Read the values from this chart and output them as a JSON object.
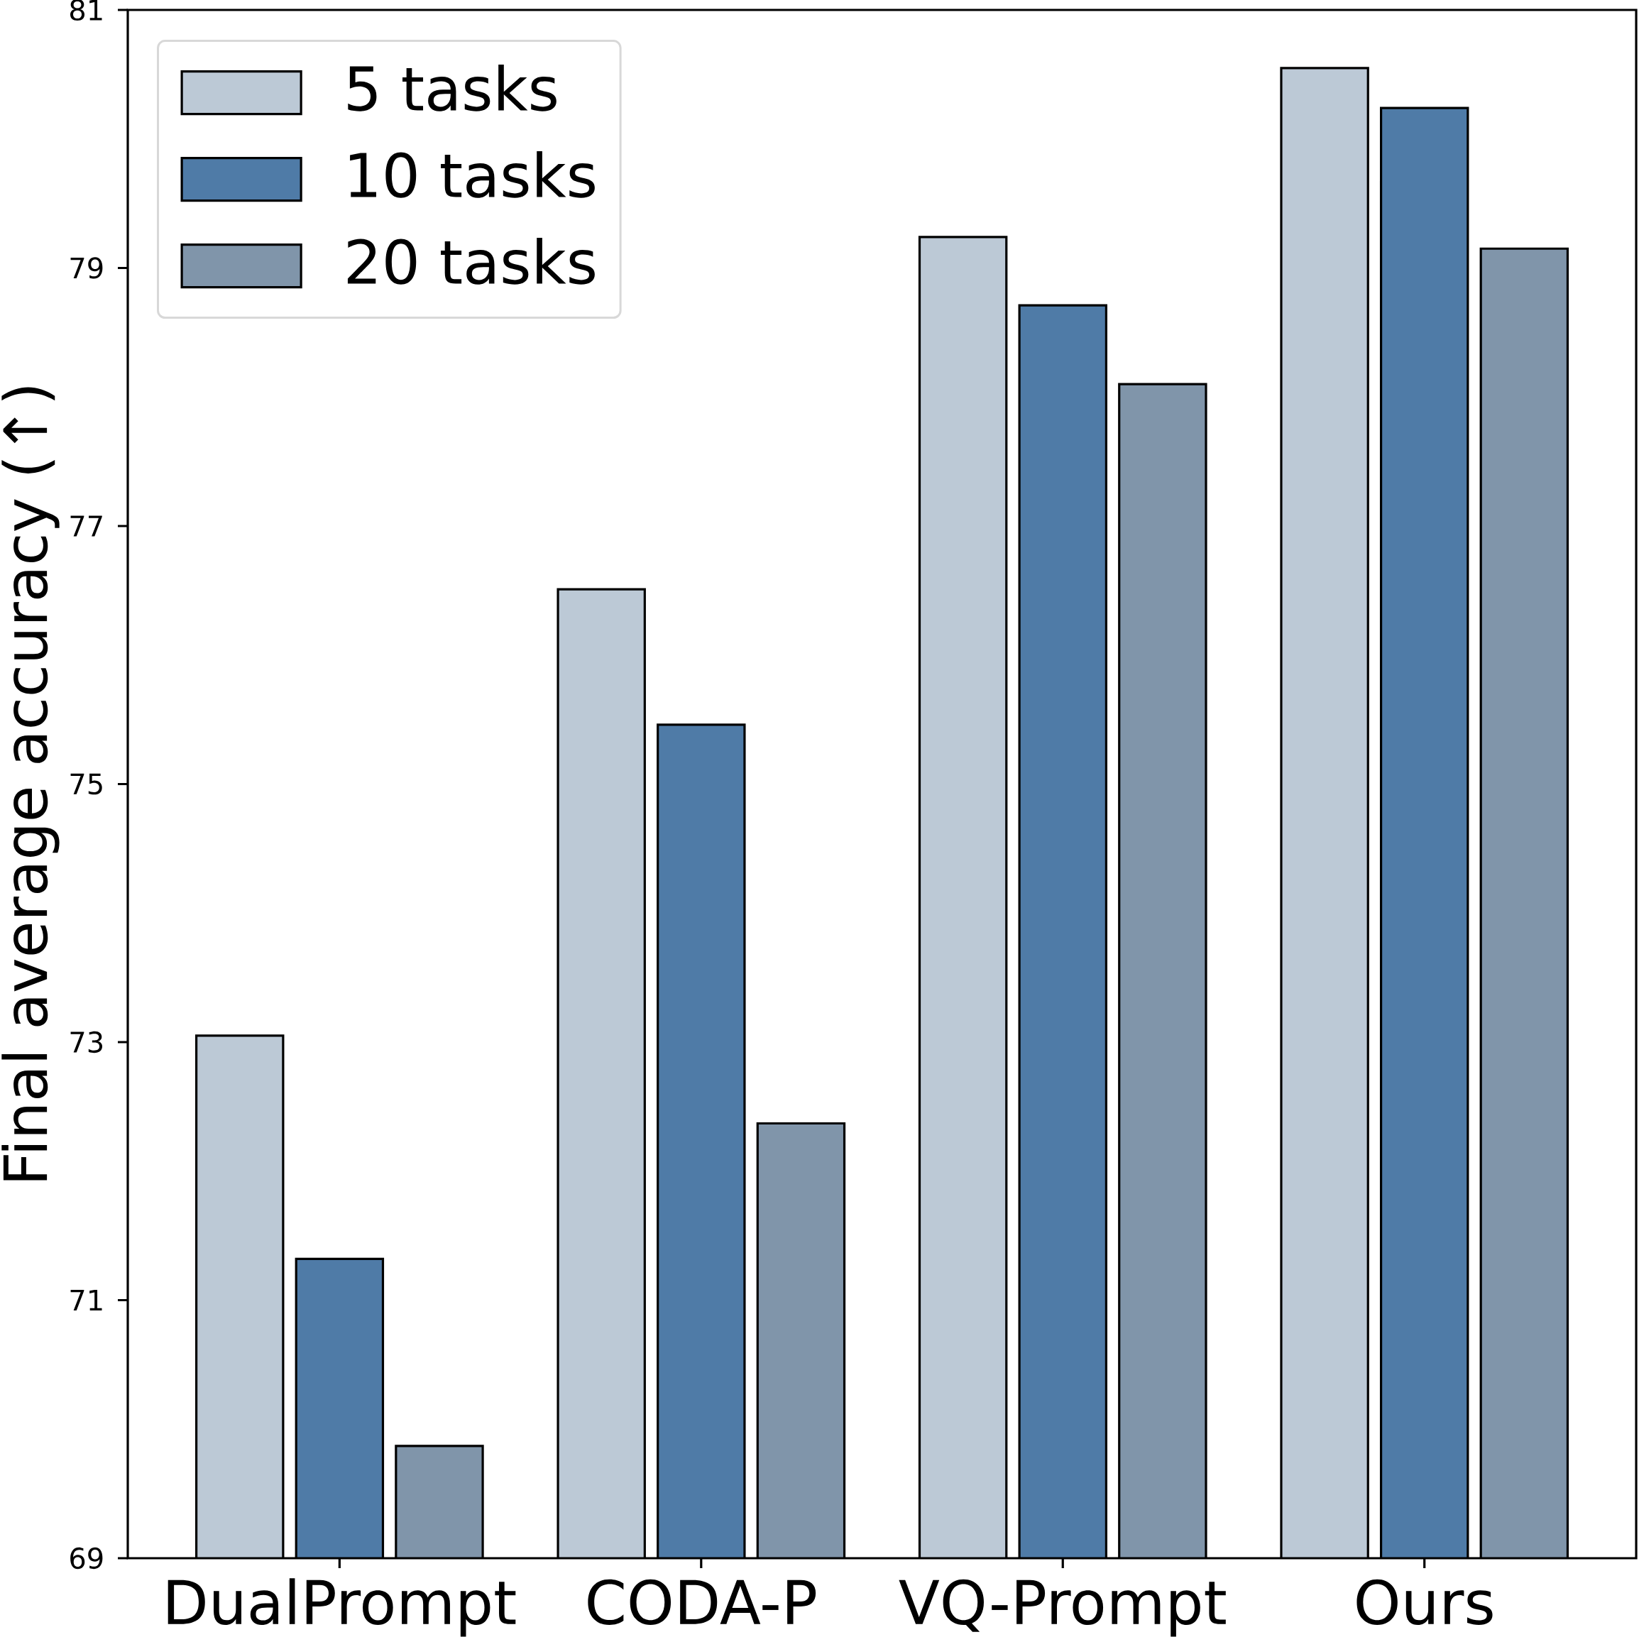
{
  "chart_data": {
    "type": "bar",
    "ylabel": "Final average accuracy (↑)",
    "categories": [
      "DualPrompt",
      "CODA-P",
      "VQ-Prompt",
      "Ours"
    ],
    "series": [
      {
        "name": "5 tasks",
        "color": "#bcc9d6",
        "values": [
          73.05,
          76.51,
          79.24,
          80.55
        ]
      },
      {
        "name": "10 tasks",
        "color": "#4f7ba7",
        "values": [
          71.32,
          75.46,
          78.71,
          80.24
        ]
      },
      {
        "name": "20 tasks",
        "color": "#8095aa",
        "values": [
          69.87,
          72.37,
          78.1,
          79.15
        ]
      }
    ],
    "ylim": [
      69,
      81
    ],
    "yticks": [
      69,
      71,
      73,
      75,
      77,
      79,
      81
    ],
    "grid": false,
    "legend": "top left"
  }
}
